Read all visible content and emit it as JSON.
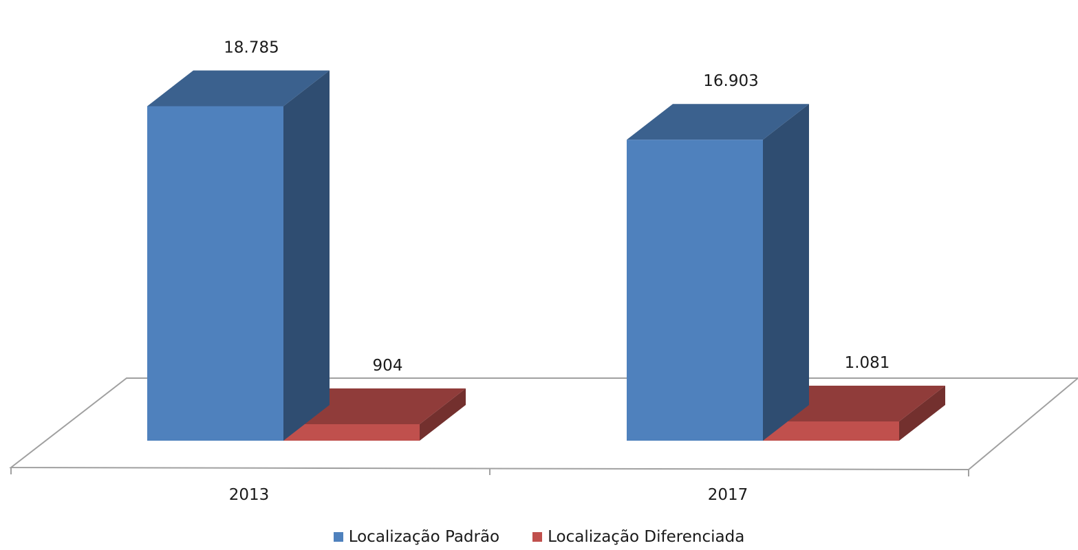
{
  "chart_data": {
    "type": "bar",
    "style": "3d-clustered-column",
    "categories": [
      "2013",
      "2017"
    ],
    "series": [
      {
        "name": "Localização Padrão",
        "values": [
          18785,
          16903
        ],
        "labels": [
          "18.785",
          "16.903"
        ],
        "color": "#4f81bd"
      },
      {
        "name": "Localização Diferenciada",
        "values": [
          904,
          1081
        ],
        "labels": [
          "904",
          "1.081"
        ],
        "color": "#c0504d"
      }
    ],
    "ylim": [
      0,
      20000
    ],
    "grid": false,
    "legend_position": "bottom"
  }
}
